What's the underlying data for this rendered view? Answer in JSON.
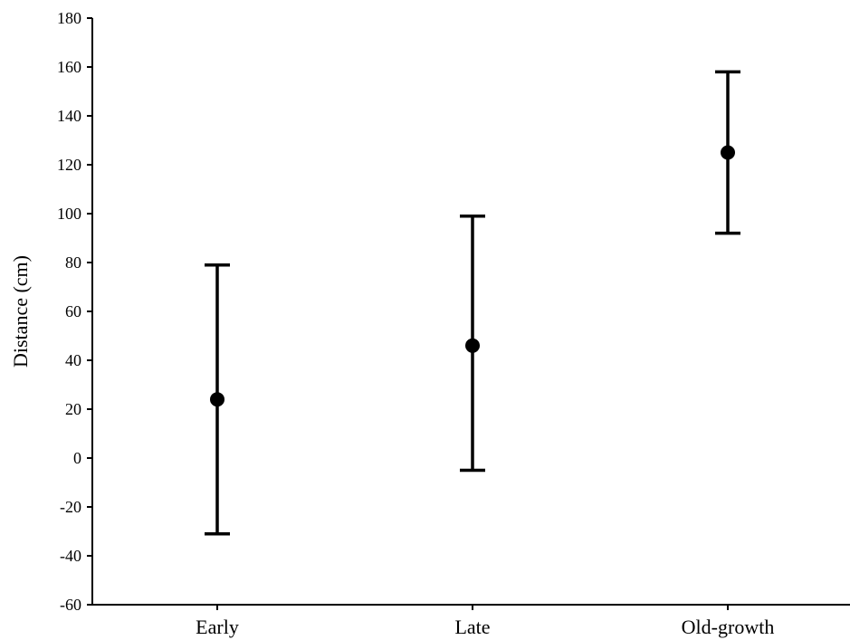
{
  "chart_data": {
    "type": "scatter",
    "ylabel": "Distance (cm)",
    "ylim": [
      -60,
      180
    ],
    "yticks": [
      180,
      160,
      140,
      120,
      100,
      80,
      60,
      40,
      20,
      0,
      -20,
      -40,
      -60
    ],
    "categories": [
      "Early",
      "Late",
      "Old-growth"
    ],
    "points": [
      {
        "category": "Early",
        "mean": 24,
        "lower": -31,
        "upper": 79
      },
      {
        "category": "Late",
        "mean": 46,
        "lower": -5,
        "upper": 99
      },
      {
        "category": "Old-growth",
        "mean": 125,
        "lower": 92,
        "upper": 158
      }
    ],
    "grid": false,
    "error_bars": true
  }
}
